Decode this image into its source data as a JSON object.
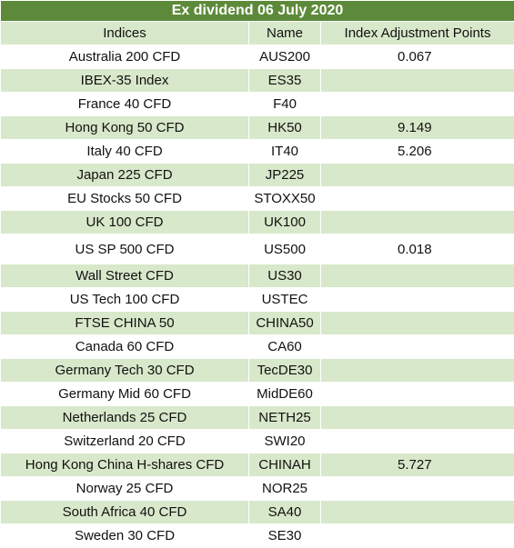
{
  "title": "Ex dividend 06 July 2020",
  "headers": {
    "indices": "Indices",
    "name": "Name",
    "points": "Index Adjustment Points"
  },
  "rows": [
    {
      "index": "Australia 200 CFD",
      "name": "AUS200",
      "points": "0.067"
    },
    {
      "index": "IBEX-35 Index",
      "name": "ES35",
      "points": ""
    },
    {
      "index": "France 40 CFD",
      "name": "F40",
      "points": ""
    },
    {
      "index": "Hong Kong 50 CFD",
      "name": "HK50",
      "points": "9.149"
    },
    {
      "index": "Italy 40 CFD",
      "name": "IT40",
      "points": "5.206"
    },
    {
      "index": "Japan 225 CFD",
      "name": "JP225",
      "points": ""
    },
    {
      "index": "EU Stocks 50 CFD",
      "name": "STOXX50",
      "points": ""
    },
    {
      "index": "UK 100 CFD",
      "name": "UK100",
      "points": ""
    },
    {
      "index": "US SP 500 CFD",
      "name": "US500",
      "points": "0.018"
    },
    {
      "index": "Wall Street CFD",
      "name": "US30",
      "points": ""
    },
    {
      "index": "US Tech 100 CFD",
      "name": "USTEC",
      "points": ""
    },
    {
      "index": "FTSE CHINA 50",
      "name": "CHINA50",
      "points": ""
    },
    {
      "index": "Canada 60 CFD",
      "name": "CA60",
      "points": ""
    },
    {
      "index": "Germany Tech 30 CFD",
      "name": "TecDE30",
      "points": ""
    },
    {
      "index": "Germany Mid 60 CFD",
      "name": "MidDE60",
      "points": ""
    },
    {
      "index": "Netherlands 25 CFD",
      "name": "NETH25",
      "points": ""
    },
    {
      "index": "Switzerland 20 CFD",
      "name": "SWI20",
      "points": ""
    },
    {
      "index": "Hong Kong China H-shares CFD",
      "name": "CHINAH",
      "points": "5.727"
    },
    {
      "index": "Norway 25 CFD",
      "name": "NOR25",
      "points": ""
    },
    {
      "index": "South Africa 40 CFD",
      "name": "SA40",
      "points": ""
    },
    {
      "index": "Sweden 30 CFD",
      "name": "SE30",
      "points": ""
    }
  ],
  "colors": {
    "title_bg": "#5c8a3a",
    "band_green": "#d8e8ca",
    "band_white": "#ffffff"
  }
}
